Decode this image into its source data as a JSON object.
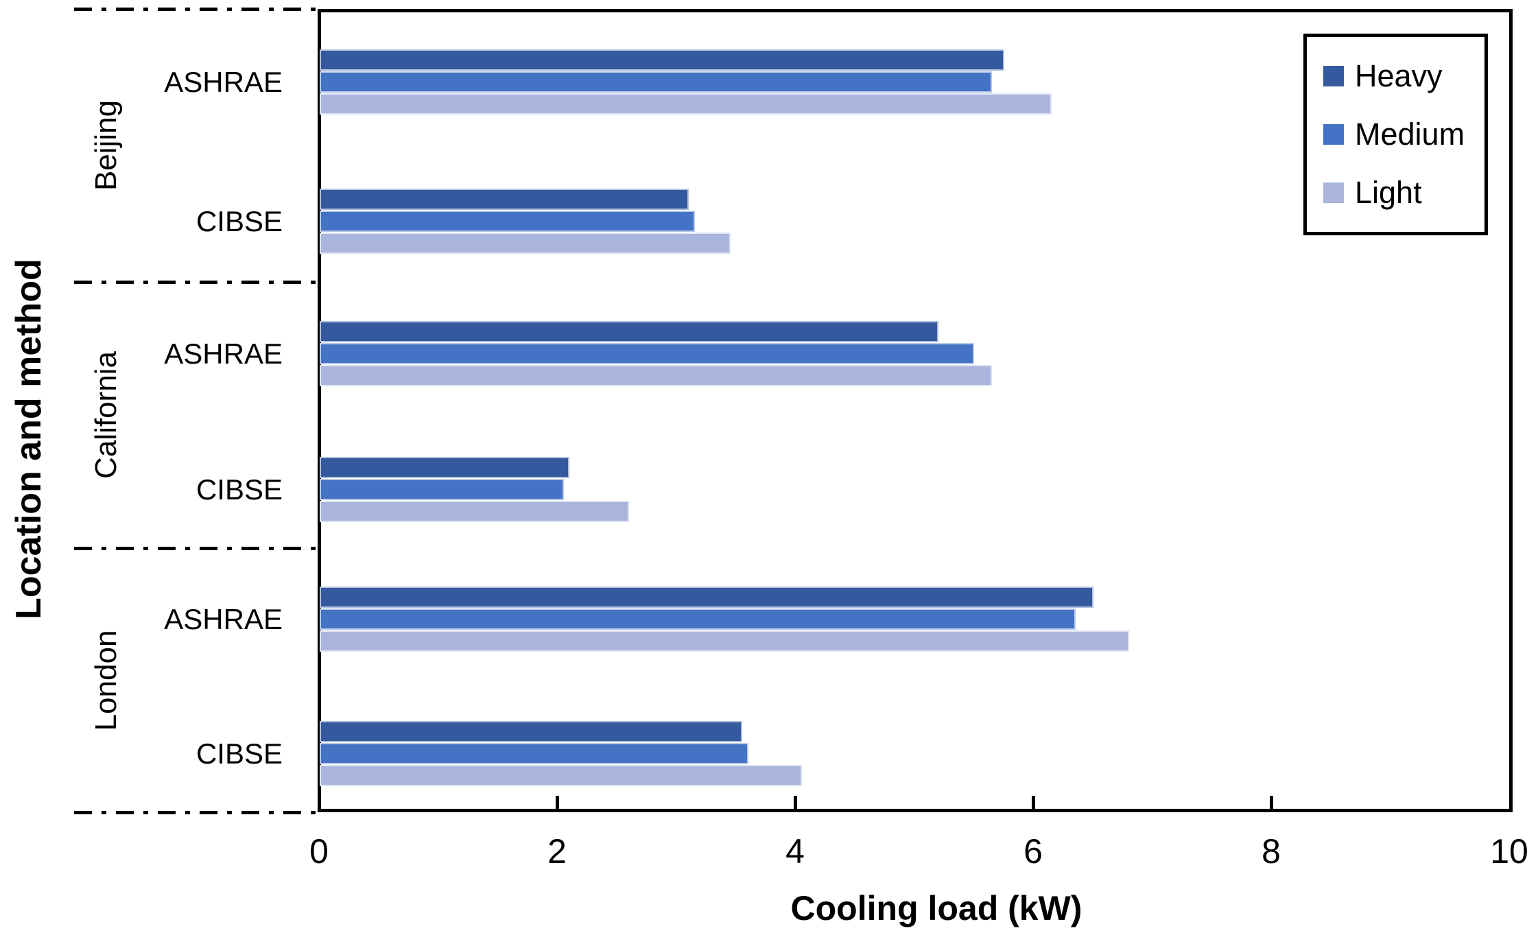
{
  "chart_data": {
    "type": "bar",
    "orientation": "horizontal",
    "xlabel": "Cooling load (kW)",
    "ylabel": "Location and method",
    "xlim": [
      0,
      10
    ],
    "x_ticks": [
      "0",
      "2",
      "4",
      "6",
      "8",
      "10"
    ],
    "grid": false,
    "series_names": [
      "Heavy",
      "Medium",
      "Light"
    ],
    "series_colors": {
      "Heavy": "#35599E",
      "Medium": "#4472C4",
      "Light": "#A9B5DC"
    },
    "legend": {
      "position": "top-right",
      "entries": [
        "Heavy",
        "Medium",
        "Light"
      ]
    },
    "groups": [
      {
        "location": "Beijing",
        "methods": [
          {
            "method": "ASHRAE",
            "values": {
              "Heavy": 5.75,
              "Medium": 5.65,
              "Light": 6.15
            }
          },
          {
            "method": "CIBSE",
            "values": {
              "Heavy": 3.1,
              "Medium": 3.15,
              "Light": 3.45
            }
          }
        ]
      },
      {
        "location": "California",
        "methods": [
          {
            "method": "ASHRAE",
            "values": {
              "Heavy": 5.2,
              "Medium": 5.5,
              "Light": 5.65
            }
          },
          {
            "method": "CIBSE",
            "values": {
              "Heavy": 2.1,
              "Medium": 2.05,
              "Light": 2.6
            }
          }
        ]
      },
      {
        "location": "London",
        "methods": [
          {
            "method": "ASHRAE",
            "values": {
              "Heavy": 6.5,
              "Medium": 6.35,
              "Light": 6.8
            }
          },
          {
            "method": "CIBSE",
            "values": {
              "Heavy": 3.55,
              "Medium": 3.6,
              "Light": 4.05
            }
          }
        ]
      }
    ]
  }
}
